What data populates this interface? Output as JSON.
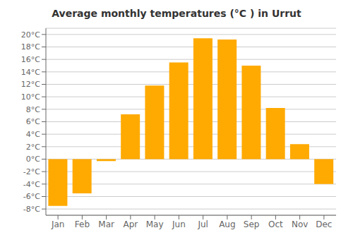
{
  "chart_data": {
    "type": "bar",
    "title": "Average monthly temperatures (°C ) in Urrut",
    "categories": [
      "Jan",
      "Feb",
      "Mar",
      "Apr",
      "May",
      "Jun",
      "Jul",
      "Aug",
      "Sep",
      "Oct",
      "Nov",
      "Dec"
    ],
    "values": [
      -7.5,
      -5.5,
      -0.3,
      7.2,
      11.8,
      15.5,
      19.4,
      19.2,
      15.0,
      8.2,
      2.4,
      -4.0
    ],
    "color": "#FFAA00",
    "ylim": [
      -9,
      21
    ],
    "yticks": [
      {
        "value": -8,
        "label": "-8°C"
      },
      {
        "value": -6,
        "label": "-6°C"
      },
      {
        "value": -4,
        "label": "-4°C"
      },
      {
        "value": -2,
        "label": "-2°C"
      },
      {
        "value": 0,
        "label": "0°C"
      },
      {
        "value": 2,
        "label": "2°C"
      },
      {
        "value": 4,
        "label": "4°C"
      },
      {
        "value": 6,
        "label": "6°C"
      },
      {
        "value": 8,
        "label": "8°C"
      },
      {
        "value": 10,
        "label": "10°C"
      },
      {
        "value": 12,
        "label": "12°C"
      },
      {
        "value": 14,
        "label": "14°C"
      },
      {
        "value": 16,
        "label": "16°C"
      },
      {
        "value": 18,
        "label": "18°C"
      },
      {
        "value": 20,
        "label": "20°C"
      }
    ],
    "grid": true
  }
}
